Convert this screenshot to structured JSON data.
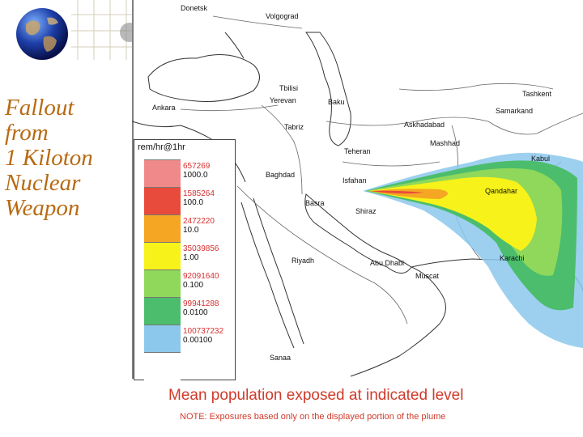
{
  "title_lines": [
    "Fallout",
    "from",
    "1 Kiloton",
    "Nuclear",
    "Weapon"
  ],
  "legend": {
    "title": "rem/hr@1hr",
    "rows": [
      {
        "population": "657269",
        "level": "1000.0",
        "color": "#f08a8a"
      },
      {
        "population": "1585264",
        "level": "100.0",
        "color": "#e84a3c"
      },
      {
        "population": "2472220",
        "level": "10.0",
        "color": "#f5a623"
      },
      {
        "population": "35039856",
        "level": "1.00",
        "color": "#f7f21a"
      },
      {
        "population": "92091640",
        "level": "0.100",
        "color": "#8fd85c"
      },
      {
        "population": "99941288",
        "level": "0.0100",
        "color": "#4bbd6c"
      },
      {
        "population": "100737232",
        "level": "0.00100",
        "color": "#8cc8ec"
      },
      {
        "population": "",
        "level": "",
        "color": "#ffffff"
      }
    ]
  },
  "cities": {
    "donetsk": "Donetsk",
    "volgograd": "Volgograd",
    "tbilisi": "Tbilisi",
    "yerevan": "Yerevan",
    "baku": "Baku",
    "ankara": "Ankara",
    "tashkent": "Tashkent",
    "samarkand": "Samarkand",
    "tabriz": "Tabriz",
    "askhabad": "Askhadabad",
    "mashhad": "Mashhad",
    "teheran": "Teheran",
    "kabul": "Kabul",
    "baghdad": "Baghdad",
    "isfahan": "Isfahan",
    "qandahar": "Qandahar",
    "basra": "Basra",
    "shiraz": "Shiraz",
    "riyadh": "Riyadh",
    "abudhabi": "Abu Dhabi",
    "karachi": "Karachi",
    "muscat": "Muscat",
    "sanaa": "Sanaa"
  },
  "caption": "Mean population exposed at indicated level",
  "note": "NOTE: Exposures based only on the displayed portion of the plume"
}
